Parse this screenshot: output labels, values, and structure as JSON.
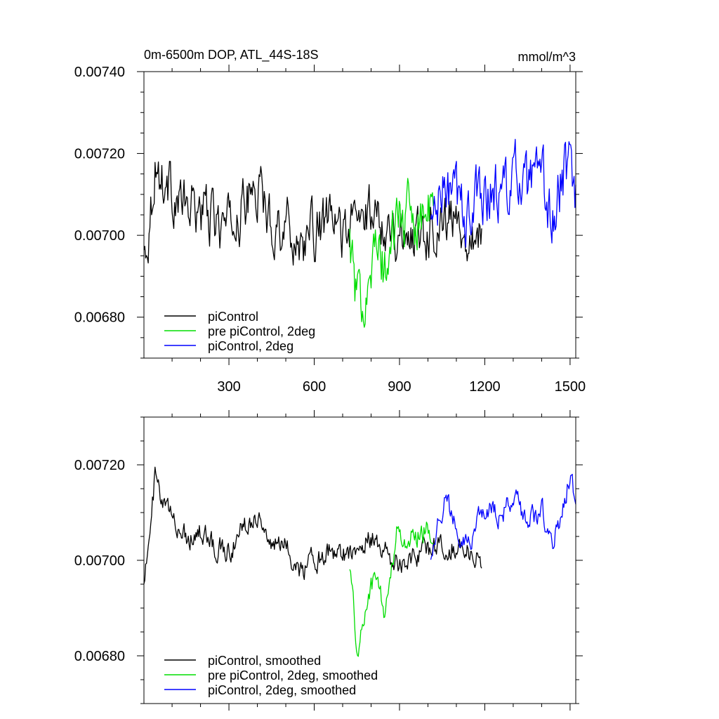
{
  "chart_data": [
    {
      "type": "line",
      "title": "0m-6500m DOP, ATL_44S-18S",
      "units": "mmol/m^3",
      "xlim": [
        1,
        1520
      ],
      "ylim": [
        0.0067,
        0.0074
      ],
      "x_ticks": [
        300,
        600,
        900,
        1200,
        1500
      ],
      "y_ticks": [
        0.0068,
        0.007,
        0.0072,
        0.0074
      ],
      "y_tick_labels": [
        "0.00680",
        "0.00700",
        "0.00720",
        "0.00740"
      ],
      "legend_position": "bottom-left",
      "series": [
        {
          "name": "piControl",
          "color": "#000000",
          "x_start": 1,
          "x_end": 1190,
          "noise": 0.00011,
          "anchors": [
            [
              1,
              0.00695
            ],
            [
              20,
              0.00703
            ],
            [
              40,
              0.00718
            ],
            [
              60,
              0.00714
            ],
            [
              100,
              0.00711
            ],
            [
              150,
              0.00706
            ],
            [
              200,
              0.00707
            ],
            [
              250,
              0.00703
            ],
            [
              300,
              0.00702
            ],
            [
              350,
              0.00707
            ],
            [
              400,
              0.00712
            ],
            [
              450,
              0.00703
            ],
            [
              500,
              0.00703
            ],
            [
              550,
              0.00698
            ],
            [
              600,
              0.00701
            ],
            [
              650,
              0.00703
            ],
            [
              700,
              0.00701
            ],
            [
              750,
              0.00703
            ],
            [
              800,
              0.00706
            ],
            [
              850,
              0.00704
            ],
            [
              900,
              0.007
            ],
            [
              950,
              0.00701
            ],
            [
              1000,
              0.00702
            ],
            [
              1050,
              0.00704
            ],
            [
              1100,
              0.00703
            ],
            [
              1150,
              0.00702
            ],
            [
              1190,
              0.007
            ]
          ]
        },
        {
          "name": "pre piControl, 2deg",
          "color": "#00dd00",
          "x_start": 725,
          "x_end": 1020,
          "noise": 0.00012,
          "anchors": [
            [
              725,
              0.007
            ],
            [
              740,
              0.00688
            ],
            [
              755,
              0.00682
            ],
            [
              770,
              0.00685
            ],
            [
              790,
              0.00692
            ],
            [
              810,
              0.00695
            ],
            [
              830,
              0.00695
            ],
            [
              850,
              0.0069
            ],
            [
              870,
              0.00698
            ],
            [
              890,
              0.00705
            ],
            [
              920,
              0.00704
            ],
            [
              950,
              0.00705
            ],
            [
              980,
              0.00706
            ],
            [
              1000,
              0.00705
            ],
            [
              1020,
              0.00706
            ]
          ]
        },
        {
          "name": "piControl, 2deg",
          "color": "#0000ff",
          "x_start": 1010,
          "x_end": 1520,
          "noise": 0.00013,
          "anchors": [
            [
              1010,
              0.00702
            ],
            [
              1060,
              0.00712
            ],
            [
              1100,
              0.00708
            ],
            [
              1150,
              0.00705
            ],
            [
              1200,
              0.00712
            ],
            [
              1250,
              0.0071
            ],
            [
              1300,
              0.00714
            ],
            [
              1350,
              0.0071
            ],
            [
              1400,
              0.00712
            ],
            [
              1440,
              0.00703
            ],
            [
              1470,
              0.00712
            ],
            [
              1500,
              0.00718
            ],
            [
              1520,
              0.00712
            ]
          ]
        }
      ]
    },
    {
      "type": "line",
      "xlim": [
        1,
        1520
      ],
      "ylim": [
        0.0067,
        0.0073
      ],
      "x_ticks": [
        300,
        600,
        900,
        1200,
        1500
      ],
      "y_ticks": [
        0.0068,
        0.007,
        0.0072
      ],
      "y_tick_labels": [
        "0.00680",
        "0.00700",
        "0.00720"
      ],
      "legend_position": "bottom-left",
      "series": [
        {
          "name": "piControl, smoothed",
          "color": "#000000",
          "x_start": 1,
          "x_end": 1190,
          "noise": 4e-05,
          "anchors": [
            [
              1,
              0.00697
            ],
            [
              20,
              0.00703
            ],
            [
              40,
              0.00718
            ],
            [
              60,
              0.00712
            ],
            [
              100,
              0.00709
            ],
            [
              150,
              0.00705
            ],
            [
              200,
              0.00706
            ],
            [
              250,
              0.00703
            ],
            [
              300,
              0.00702
            ],
            [
              350,
              0.00707
            ],
            [
              400,
              0.0071
            ],
            [
              450,
              0.00703
            ],
            [
              500,
              0.00703
            ],
            [
              550,
              0.00698
            ],
            [
              600,
              0.007
            ],
            [
              650,
              0.00702
            ],
            [
              700,
              0.00701
            ],
            [
              750,
              0.00703
            ],
            [
              800,
              0.00705
            ],
            [
              850,
              0.00702
            ],
            [
              900,
              0.00699
            ],
            [
              950,
              0.00701
            ],
            [
              1000,
              0.00702
            ],
            [
              1050,
              0.00703
            ],
            [
              1100,
              0.00703
            ],
            [
              1150,
              0.00702
            ],
            [
              1190,
              0.00699
            ]
          ]
        },
        {
          "name": "pre piControl, 2deg, smoothed",
          "color": "#00dd00",
          "x_start": 725,
          "x_end": 1020,
          "noise": 4e-05,
          "anchors": [
            [
              725,
              0.007
            ],
            [
              740,
              0.00688
            ],
            [
              755,
              0.0068
            ],
            [
              770,
              0.00686
            ],
            [
              790,
              0.00693
            ],
            [
              810,
              0.00696
            ],
            [
              830,
              0.00694
            ],
            [
              850,
              0.00688
            ],
            [
              870,
              0.00698
            ],
            [
              890,
              0.00706
            ],
            [
              920,
              0.00704
            ],
            [
              950,
              0.00705
            ],
            [
              980,
              0.00706
            ],
            [
              1000,
              0.00707
            ],
            [
              1020,
              0.00705
            ]
          ]
        },
        {
          "name": "piControl, 2deg, smoothed",
          "color": "#0000ff",
          "x_start": 1010,
          "x_end": 1520,
          "noise": 4e-05,
          "anchors": [
            [
              1010,
              0.00702
            ],
            [
              1060,
              0.00713
            ],
            [
              1100,
              0.00707
            ],
            [
              1150,
              0.00704
            ],
            [
              1200,
              0.00711
            ],
            [
              1250,
              0.00709
            ],
            [
              1300,
              0.00713
            ],
            [
              1350,
              0.00708
            ],
            [
              1400,
              0.00711
            ],
            [
              1440,
              0.00703
            ],
            [
              1470,
              0.0071
            ],
            [
              1500,
              0.00718
            ],
            [
              1520,
              0.00711
            ]
          ]
        }
      ]
    }
  ]
}
